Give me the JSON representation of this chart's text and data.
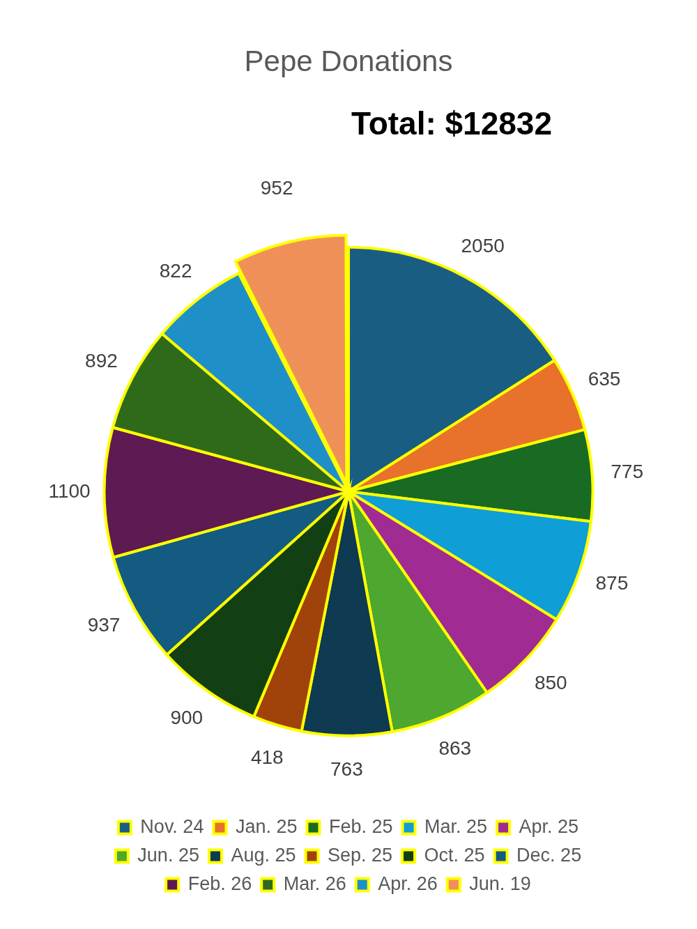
{
  "chart_data": {
    "type": "pie",
    "title": "Pepe Donations",
    "annotations": [
      "Total: $12832"
    ],
    "categories": [
      "Nov. 24",
      "Jan. 25",
      "Feb. 25",
      "Mar. 25",
      "Apr. 25",
      "Jun. 25",
      "Aug. 25",
      "Sep. 25",
      "Oct. 25",
      "Dec. 25",
      "Feb. 26",
      "Mar. 26",
      "Apr. 26",
      "Jun. 19"
    ],
    "values": [
      2050,
      635,
      775,
      875,
      850,
      863,
      763,
      418,
      900,
      937,
      1100,
      892,
      822,
      952
    ],
    "colors": [
      "#195e82",
      "#e8712b",
      "#196b24",
      "#0f9ed5",
      "#a02b93",
      "#4ea72e",
      "#0e3a52",
      "#a0430a",
      "#124014",
      "#135b80",
      "#5e1a52",
      "#2f6a1b",
      "#1f8fc7",
      "#ef9059"
    ],
    "data_labels": true,
    "legend": "bottom"
  }
}
